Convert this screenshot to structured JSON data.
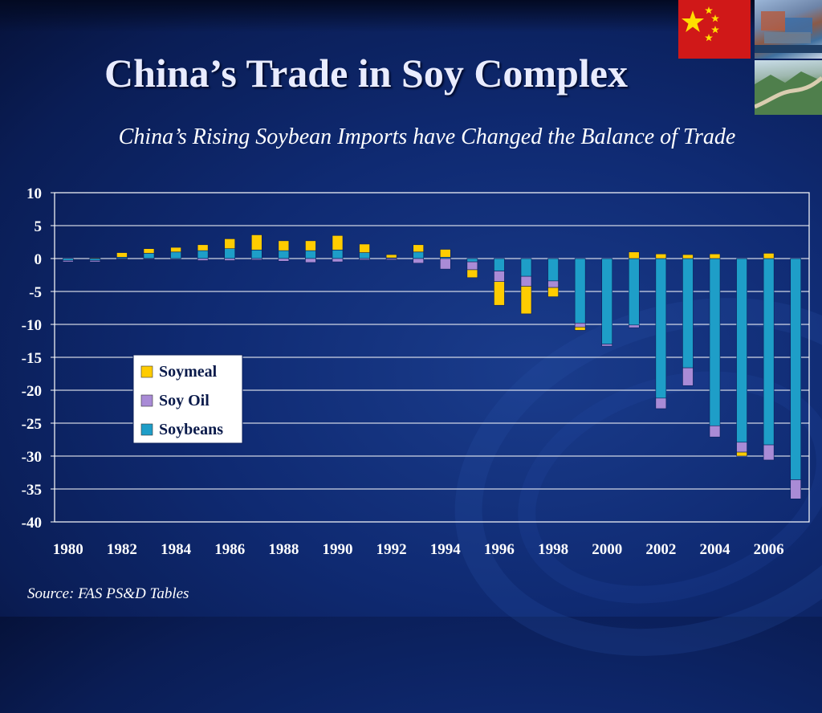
{
  "header": {
    "title": "China’s Trade in Soy Complex",
    "subtitle": "China’s Rising Soybean Imports have Changed the Balance of Trade"
  },
  "images": {
    "flag": "china-flag-image",
    "containers": "shipping-containers-image",
    "wall": "great-wall-image"
  },
  "colors": {
    "soymeal": "#FFCC00",
    "soy_oil": "#A98BD6",
    "soybeans": "#1E9EC8",
    "plot_border": "#ffffff",
    "gridline": "#ffffff"
  },
  "footer": {
    "source": "Source: FAS PS&D Tables"
  },
  "chart_data": {
    "type": "bar",
    "stacked": true,
    "title": "",
    "xlabel": "",
    "ylabel": "",
    "ylim": [
      -40,
      10
    ],
    "yticks": [
      10,
      5,
      0,
      -5,
      -10,
      -15,
      -20,
      -25,
      -30,
      -35,
      -40
    ],
    "grid": true,
    "legend_placement": "center-left",
    "categories": [
      "1980",
      "1981",
      "1982",
      "1983",
      "1984",
      "1985",
      "1986",
      "1987",
      "1988",
      "1989",
      "1990",
      "1991",
      "1992",
      "1993",
      "1994",
      "1995",
      "1996",
      "1997",
      "1998",
      "1999",
      "2000",
      "2001",
      "2002",
      "2003",
      "2004",
      "2005",
      "2006",
      "2007"
    ],
    "xtick_labels": [
      "1980",
      "1982",
      "1984",
      "1986",
      "1988",
      "1990",
      "1992",
      "1994",
      "1996",
      "1998",
      "2000",
      "2002",
      "2004",
      "2006"
    ],
    "series": [
      {
        "name": "Soymeal",
        "values": [
          0,
          0.1,
          0.7,
          0.7,
          0.7,
          0.9,
          1.5,
          2.3,
          1.5,
          1.5,
          2.2,
          1.3,
          0.5,
          1.1,
          1.2,
          -1.2,
          -3.6,
          -4.2,
          -1.4,
          -0.5,
          0,
          1.0,
          0.7,
          0.6,
          0.7,
          -0.6,
          0.8,
          0
        ]
      },
      {
        "name": "Soy Oil",
        "values": [
          -0.2,
          -0.2,
          -0.1,
          -0.1,
          0,
          -0.3,
          -0.3,
          -0.2,
          -0.4,
          -0.6,
          -0.5,
          -0.2,
          -0.2,
          -0.7,
          -1.6,
          -1.2,
          -1.6,
          -1.5,
          -1.0,
          -0.6,
          -0.3,
          -0.4,
          -1.6,
          -2.7,
          -1.7,
          -1.5,
          -2.3,
          -2.9
        ]
      },
      {
        "name": "Soybeans",
        "values": [
          -0.3,
          -0.3,
          0.2,
          0.8,
          1.0,
          1.2,
          1.5,
          1.3,
          1.2,
          1.2,
          1.3,
          0.9,
          0.1,
          1.0,
          0.2,
          -0.5,
          -1.9,
          -2.7,
          -3.4,
          -9.8,
          -13.0,
          -10.1,
          -21.2,
          -16.6,
          -25.4,
          -27.9,
          -28.3,
          -33.6
        ]
      }
    ]
  }
}
